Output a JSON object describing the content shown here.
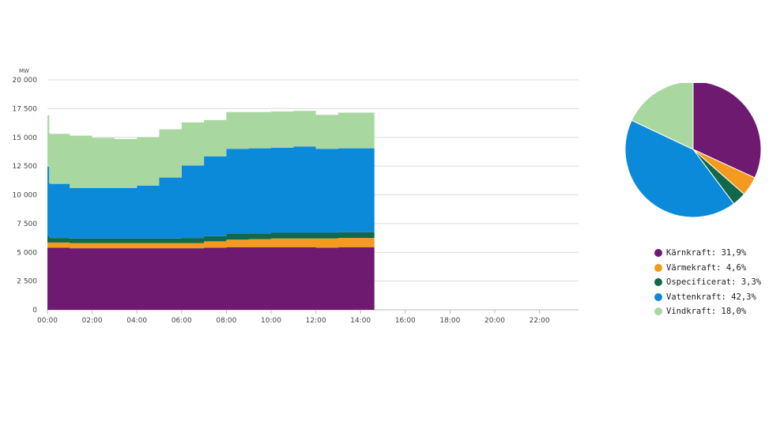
{
  "chart_data": [
    {
      "type": "area",
      "stacked": true,
      "ylabel": "MW",
      "ylim": [
        0,
        20000
      ],
      "yticks": [
        "20 000",
        "17 500",
        "15 000",
        "12 500",
        "10 000",
        "7 500",
        "5 000",
        "2 500",
        "0"
      ],
      "ytick_values": [
        20000,
        17500,
        15000,
        12500,
        10000,
        7500,
        5000,
        2500,
        0
      ],
      "xlim": [
        0,
        24
      ],
      "xticks": [
        "00:00",
        "02:00",
        "04:00",
        "06:00",
        "08:00",
        "10:00",
        "12:00",
        "14:00",
        "16:00",
        "18:00",
        "20:00",
        "22:00"
      ],
      "xtick_values": [
        0,
        2,
        4,
        6,
        8,
        10,
        12,
        14,
        16,
        18,
        20,
        22
      ],
      "grid": true,
      "x": [
        0,
        0.08,
        0.12,
        0.2,
        1,
        2,
        3,
        4,
        5,
        6,
        7,
        8,
        9,
        10,
        11,
        12,
        13,
        14,
        14.58
      ],
      "series": [
        {
          "name": "Kärnkraft",
          "color": "#6d1a70",
          "values": [
            5400,
            5400,
            5400,
            5400,
            5350,
            5350,
            5350,
            5350,
            5350,
            5350,
            5400,
            5450,
            5450,
            5450,
            5450,
            5400,
            5450,
            5450,
            5450
          ]
        },
        {
          "name": "Värmekraft",
          "color": "#f39a1f",
          "values": [
            450,
            450,
            450,
            450,
            450,
            450,
            450,
            450,
            450,
            450,
            550,
            650,
            700,
            750,
            750,
            800,
            800,
            800,
            800
          ]
        },
        {
          "name": "Ospecificerat",
          "color": "#12684a",
          "values": [
            600,
            450,
            400,
            400,
            400,
            400,
            400,
            400,
            400,
            450,
            450,
            500,
            500,
            500,
            500,
            500,
            500,
            500,
            500
          ]
        },
        {
          "name": "Vattenkraft",
          "color": "#0a8ad8",
          "values": [
            6000,
            4700,
            4700,
            4700,
            4400,
            4400,
            4400,
            4600,
            5300,
            6300,
            6950,
            7400,
            7400,
            7400,
            7500,
            7300,
            7300,
            7300,
            7300
          ]
        },
        {
          "name": "Vindkraft",
          "color": "#a8d8a0",
          "values": [
            4450,
            4350,
            4350,
            4350,
            4550,
            4350,
            4250,
            4200,
            4200,
            3750,
            3150,
            3200,
            3150,
            3150,
            3100,
            2950,
            3100,
            3100,
            3100
          ]
        }
      ]
    },
    {
      "type": "pie",
      "start_angle": "top, clockwise",
      "slices": [
        {
          "label": "Kärnkraft",
          "value": 31.9,
          "display": "Kärnkraft: 31,9%",
          "color": "#6d1a70"
        },
        {
          "label": "Värmekraft",
          "value": 4.6,
          "display": "Värmekraft: 4,6%",
          "color": "#f39a1f"
        },
        {
          "label": "Ospecificerat",
          "value": 3.3,
          "display": "Ospecificerat: 3,3%",
          "color": "#12684a"
        },
        {
          "label": "Vattenkraft",
          "value": 42.3,
          "display": "Vattenkraft: 42,3%",
          "color": "#0a8ad8"
        },
        {
          "label": "Vindkraft",
          "value": 18.0,
          "display": "Vindkraft: 18,0%",
          "color": "#a8d8a0"
        }
      ],
      "legend_position": "below"
    }
  ]
}
